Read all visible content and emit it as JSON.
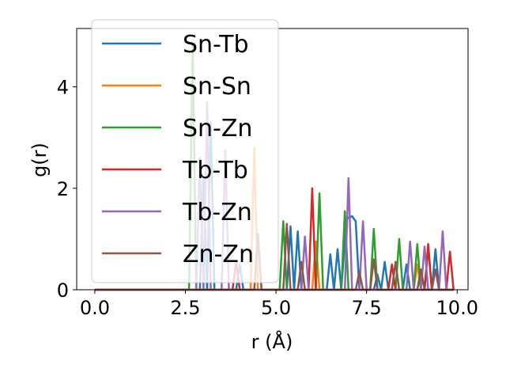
{
  "chart_data": {
    "type": "line",
    "title": "",
    "xlabel": "r (Å)",
    "ylabel": "g(r)",
    "xlim": [
      -0.5,
      10.3
    ],
    "ylim": [
      0,
      5.15
    ],
    "xticks": [
      0.0,
      2.5,
      5.0,
      7.5,
      10.0
    ],
    "xtick_labels": [
      "0.0",
      "2.5",
      "5.0",
      "7.5",
      "10.0"
    ],
    "yticks": [
      0,
      2,
      4
    ],
    "ytick_labels": [
      "0",
      "2",
      "4"
    ],
    "grid": false,
    "legend_position": "upper-left",
    "series": [
      {
        "name": "Sn-Tb",
        "color": "#1f77b4",
        "points": [
          [
            0,
            0
          ],
          [
            2.9,
            0
          ],
          [
            3.0,
            2.2
          ],
          [
            3.1,
            0
          ],
          [
            3.2,
            3.3
          ],
          [
            3.3,
            0
          ],
          [
            3.9,
            0
          ],
          [
            4.0,
            0.5
          ],
          [
            4.1,
            0
          ],
          [
            5.3,
            0
          ],
          [
            5.4,
            1.25
          ],
          [
            5.5,
            0
          ],
          [
            5.6,
            1.15
          ],
          [
            5.7,
            0
          ],
          [
            6.4,
            0
          ],
          [
            6.5,
            0.7
          ],
          [
            6.6,
            0
          ],
          [
            6.7,
            0.8
          ],
          [
            6.8,
            0
          ],
          [
            6.95,
            1.4
          ],
          [
            7.1,
            1.45
          ],
          [
            7.2,
            1.35
          ],
          [
            7.3,
            0
          ],
          [
            7.7,
            0
          ],
          [
            7.8,
            0.3
          ],
          [
            7.9,
            0
          ],
          [
            8.0,
            0.55
          ],
          [
            8.1,
            0
          ],
          [
            8.5,
            0
          ],
          [
            8.6,
            0.5
          ],
          [
            8.7,
            0
          ],
          [
            9.1,
            0
          ],
          [
            9.2,
            0.85
          ],
          [
            9.3,
            0
          ],
          [
            9.4,
            0.8
          ],
          [
            9.5,
            0
          ],
          [
            9.9,
            0
          ]
        ]
      },
      {
        "name": "Sn-Sn",
        "color": "#ff7f0e",
        "points": [
          [
            0,
            0
          ],
          [
            4.3,
            0
          ],
          [
            4.4,
            2.8
          ],
          [
            4.5,
            0
          ],
          [
            6.0,
            0
          ],
          [
            6.1,
            0.95
          ],
          [
            6.2,
            0
          ],
          [
            8.8,
            0
          ],
          [
            8.9,
            0.5
          ],
          [
            9.0,
            0
          ],
          [
            9.9,
            0
          ]
        ]
      },
      {
        "name": "Sn-Zn",
        "color": "#2ca02c",
        "points": [
          [
            0,
            0
          ],
          [
            2.6,
            0
          ],
          [
            2.7,
            4.85
          ],
          [
            2.8,
            0
          ],
          [
            5.1,
            0
          ],
          [
            5.2,
            1.35
          ],
          [
            5.3,
            0
          ],
          [
            6.1,
            0
          ],
          [
            6.2,
            1.9
          ],
          [
            6.3,
            0
          ],
          [
            6.8,
            0
          ],
          [
            6.9,
            1.55
          ],
          [
            7.0,
            0
          ],
          [
            7.6,
            0
          ],
          [
            7.7,
            1.2
          ],
          [
            7.8,
            0
          ],
          [
            8.3,
            0
          ],
          [
            8.4,
            1.0
          ],
          [
            8.5,
            0
          ],
          [
            8.8,
            0
          ],
          [
            8.9,
            0.9
          ],
          [
            9.0,
            0
          ],
          [
            9.9,
            0
          ]
        ]
      },
      {
        "name": "Tb-Tb",
        "color": "#d62728",
        "points": [
          [
            0,
            0
          ],
          [
            3.8,
            0
          ],
          [
            3.9,
            0.55
          ],
          [
            4.0,
            0
          ],
          [
            5.9,
            0
          ],
          [
            6.0,
            2.0
          ],
          [
            6.1,
            0
          ],
          [
            8.1,
            0
          ],
          [
            8.2,
            0.5
          ],
          [
            8.3,
            0
          ],
          [
            9.1,
            0
          ],
          [
            9.2,
            0.9
          ],
          [
            9.3,
            0
          ],
          [
            9.7,
            0
          ],
          [
            9.8,
            0.75
          ],
          [
            9.9,
            0
          ]
        ]
      },
      {
        "name": "Tb-Zn",
        "color": "#9467bd",
        "points": [
          [
            0,
            0
          ],
          [
            2.8,
            0
          ],
          [
            2.9,
            2.6
          ],
          [
            3.0,
            0
          ],
          [
            3.1,
            3.7
          ],
          [
            3.2,
            0
          ],
          [
            3.5,
            0
          ],
          [
            3.6,
            2.75
          ],
          [
            3.7,
            0
          ],
          [
            5.7,
            0
          ],
          [
            5.8,
            1.05
          ],
          [
            5.9,
            0
          ],
          [
            6.9,
            0
          ],
          [
            7.0,
            2.2
          ],
          [
            7.1,
            0
          ],
          [
            7.3,
            0
          ],
          [
            7.4,
            1.35
          ],
          [
            7.5,
            0
          ],
          [
            8.6,
            0
          ],
          [
            8.7,
            0.95
          ],
          [
            8.8,
            0
          ],
          [
            9.0,
            0
          ],
          [
            9.1,
            0.85
          ],
          [
            9.2,
            0
          ],
          [
            9.5,
            0
          ],
          [
            9.6,
            1.15
          ],
          [
            9.7,
            0
          ],
          [
            9.9,
            0
          ]
        ]
      },
      {
        "name": "Zn-Zn",
        "color": "#8c564b",
        "points": [
          [
            0,
            0
          ],
          [
            4.4,
            0
          ],
          [
            4.5,
            1.1
          ],
          [
            4.6,
            0
          ],
          [
            5.2,
            0
          ],
          [
            5.3,
            1.3
          ],
          [
            5.4,
            0
          ],
          [
            5.6,
            0
          ],
          [
            5.7,
            0.55
          ],
          [
            5.8,
            0
          ],
          [
            7.2,
            0
          ],
          [
            7.3,
            0.35
          ],
          [
            7.4,
            0
          ],
          [
            7.6,
            0
          ],
          [
            7.7,
            0.6
          ],
          [
            7.8,
            0
          ],
          [
            8.2,
            0
          ],
          [
            8.3,
            0.55
          ],
          [
            8.4,
            0
          ],
          [
            8.9,
            0
          ],
          [
            9.0,
            0.4
          ],
          [
            9.1,
            0
          ],
          [
            9.3,
            0
          ],
          [
            9.4,
            0.4
          ],
          [
            9.5,
            0
          ],
          [
            9.9,
            0
          ]
        ]
      }
    ]
  }
}
